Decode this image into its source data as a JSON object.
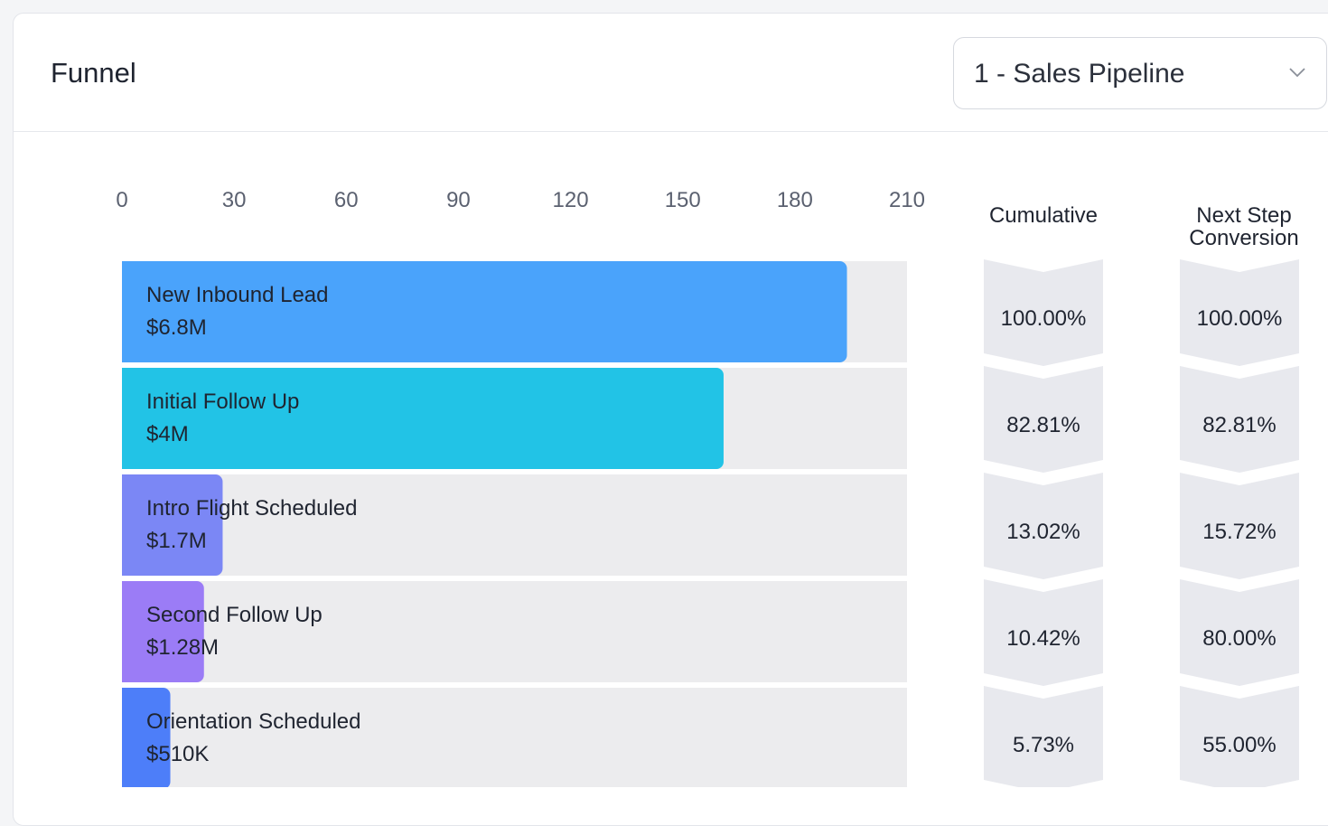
{
  "header": {
    "title": "Funnel",
    "pipeline_select": {
      "value": "1 - Sales Pipeline",
      "icon": "chevron-down-icon"
    }
  },
  "columns": {
    "cumulative": "Cumulative",
    "next_step": "Next Step Conversion"
  },
  "chart_data": {
    "type": "bar",
    "orientation": "horizontal",
    "xlim": [
      0,
      210
    ],
    "x_ticks": [
      0,
      30,
      60,
      90,
      120,
      150,
      180,
      210
    ],
    "categories": [
      "New Inbound Lead",
      "Initial Follow Up",
      "Intro Flight Scheduled",
      "Second Follow Up",
      "Orientation Scheduled"
    ],
    "values": [
      192,
      159,
      25,
      20,
      11
    ],
    "value_labels": [
      "$6.8M",
      "$4M",
      "$1.7M",
      "$1.28M",
      "$510K"
    ],
    "colors": [
      "#4aa3fb",
      "#22c3e6",
      "#7b87f5",
      "#9b7cf6",
      "#4d7ef9"
    ],
    "track_color": "#ececee",
    "cumulative": [
      "100.00%",
      "82.81%",
      "13.02%",
      "10.42%",
      "5.73%"
    ],
    "next_step_conversion": [
      "100.00%",
      "82.81%",
      "15.72%",
      "80.00%",
      "55.00%"
    ],
    "grid": false
  }
}
